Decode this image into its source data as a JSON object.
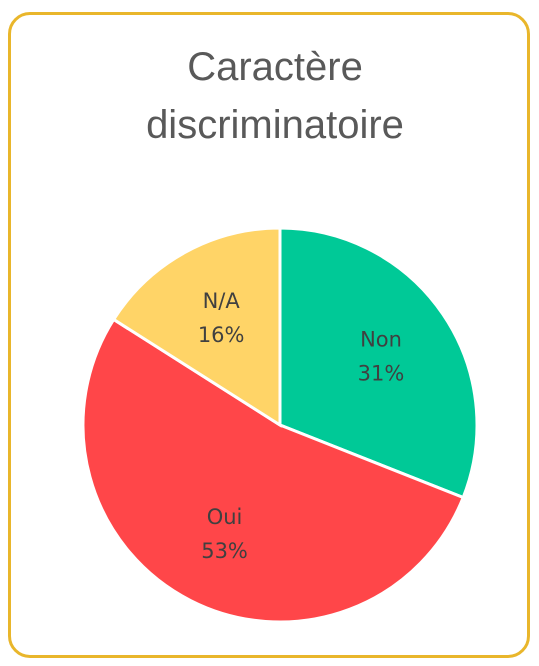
{
  "chart_data": {
    "type": "pie",
    "title": "Caractère discriminatoire",
    "categories": [
      "Non",
      "Oui",
      "N/A"
    ],
    "values": [
      31,
      53,
      16
    ],
    "value_labels": [
      "31%",
      "53%",
      "16%"
    ],
    "colors": [
      "#00c997",
      "#ff4649",
      "#ffd467"
    ]
  }
}
